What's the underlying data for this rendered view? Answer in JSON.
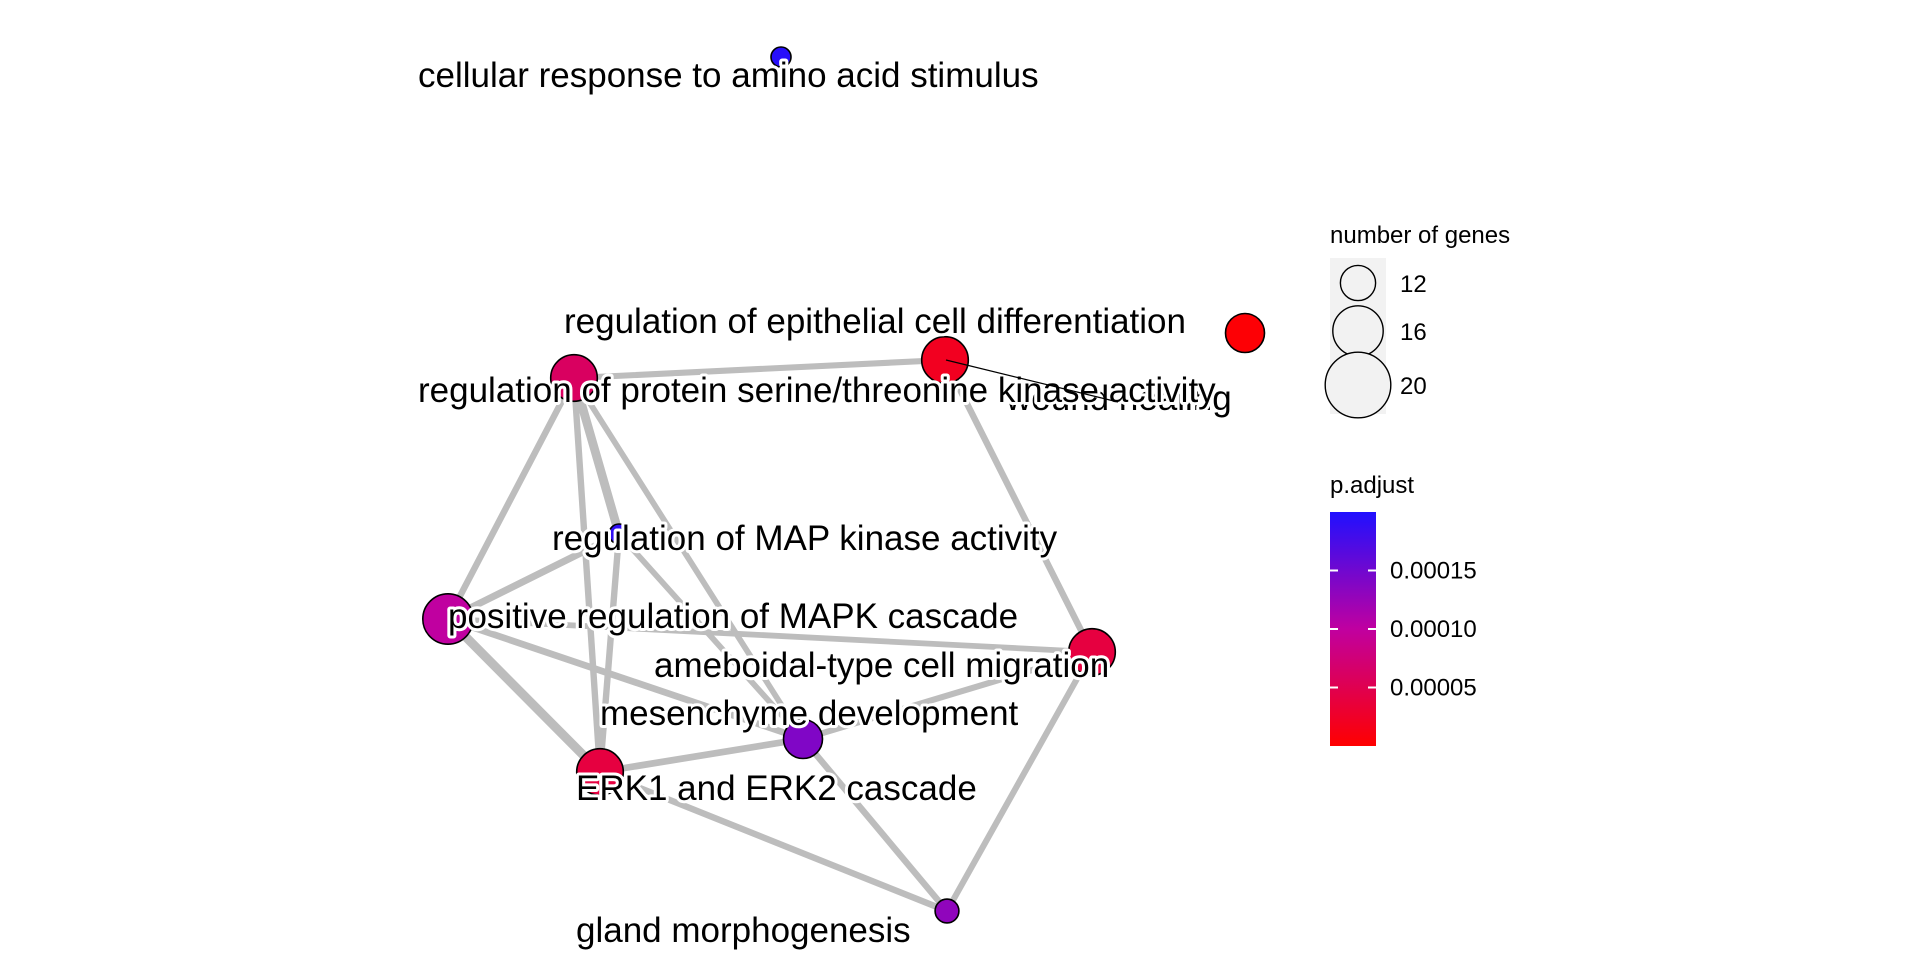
{
  "nodes": [
    {
      "id": "n1",
      "label": "cellular response to amino acid stimulus",
      "genes": 8,
      "p_adjust": 0.000195
    },
    {
      "id": "n2",
      "label": "regulation of epithelial cell differentiation",
      "genes": 15,
      "p_adjust": 2e-05
    },
    {
      "id": "n3",
      "label": "wound healing",
      "genes": 13,
      "p_adjust": 3e-06
    },
    {
      "id": "n4",
      "label": "regulation of protein serine/threonine kinase activity",
      "genes": 15,
      "p_adjust": 6e-05
    },
    {
      "id": "n5",
      "label": "regulation of MAP kinase activity",
      "genes": 8,
      "p_adjust": 0.00019
    },
    {
      "id": "n6",
      "label": "positive regulation of MAPK cascade",
      "genes": 16,
      "p_adjust": 0.0001
    },
    {
      "id": "n7",
      "label": "ameboidal-type cell migration",
      "genes": 15,
      "p_adjust": 4e-05
    },
    {
      "id": "n8",
      "label": "mesenchyme development",
      "genes": 13,
      "p_adjust": 0.00014
    },
    {
      "id": "n9",
      "label": "ERK1 and ERK2 cascade",
      "genes": 15,
      "p_adjust": 4e-05
    },
    {
      "id": "n10",
      "label": "gland morphogenesis",
      "genes": 9,
      "p_adjust": 0.00013
    }
  ],
  "edges": [
    {
      "source": "n4",
      "target": "n2",
      "weight": 0.35
    },
    {
      "source": "n4",
      "target": "n6",
      "weight": 0.4
    },
    {
      "source": "n4",
      "target": "n5",
      "weight": 0.8
    },
    {
      "source": "n4",
      "target": "n9",
      "weight": 0.4
    },
    {
      "source": "n4",
      "target": "n8",
      "weight": 0.3
    },
    {
      "source": "n2",
      "target": "n7",
      "weight": 0.4
    },
    {
      "source": "n6",
      "target": "n5",
      "weight": 0.5
    },
    {
      "source": "n6",
      "target": "n9",
      "weight": 0.85
    },
    {
      "source": "n6",
      "target": "n8",
      "weight": 0.45
    },
    {
      "source": "n6",
      "target": "n7",
      "weight": 0.3
    },
    {
      "source": "n5",
      "target": "n9",
      "weight": 0.4
    },
    {
      "source": "n5",
      "target": "n8",
      "weight": 0.3
    },
    {
      "source": "n9",
      "target": "n8",
      "weight": 0.45
    },
    {
      "source": "n9",
      "target": "n10",
      "weight": 0.4
    },
    {
      "source": "n8",
      "target": "n10",
      "weight": 0.4
    },
    {
      "source": "n7",
      "target": "n10",
      "weight": 0.35
    },
    {
      "source": "n8",
      "target": "n7",
      "weight": 0.35
    }
  ],
  "legend": {
    "size_title": "number of genes",
    "size_breaks": [
      12,
      16,
      20
    ],
    "color_title": "p.adjust",
    "color_breaks": [
      0.00015,
      0.0001,
      5e-05
    ],
    "color_break_labels": [
      "0.00015",
      "0.00010",
      "0.00005"
    ],
    "color_range": [
      0.0,
      0.0002
    ],
    "color_low": "#ff0000",
    "color_high": "#0000ff"
  }
}
